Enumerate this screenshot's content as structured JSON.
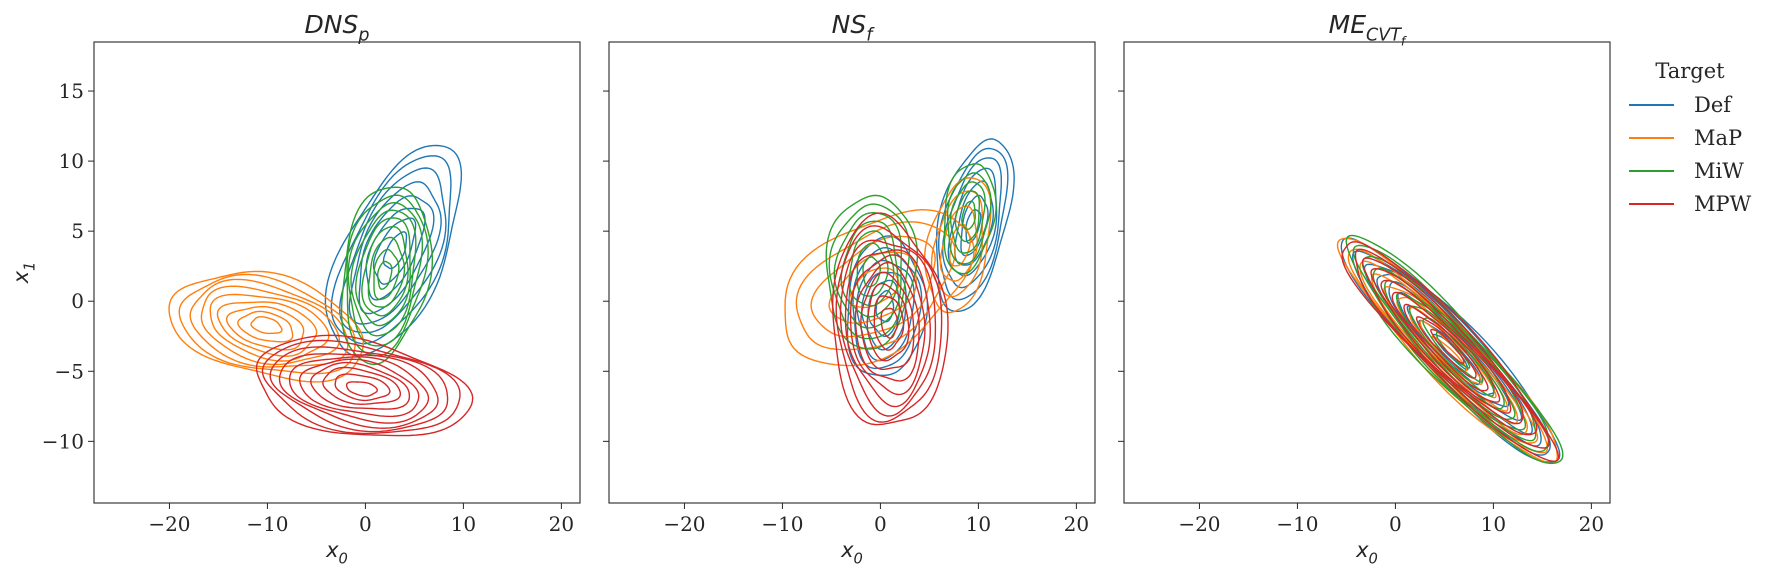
{
  "chart_data": {
    "type": "kde-contour",
    "xlim": [
      -27.7,
      21.9
    ],
    "ylim": [
      -14.4,
      18.5
    ],
    "xticks": [
      -20,
      -10,
      0,
      10,
      20
    ],
    "yticks": [
      -10,
      -5,
      0,
      5,
      10,
      15
    ],
    "xlabel": {
      "main": "x",
      "sub": "0"
    },
    "ylabel": {
      "main": "x",
      "sub": "1"
    },
    "grid": false,
    "legend": {
      "title": "Target",
      "placement": "outside-right",
      "entries": [
        {
          "name": "Def",
          "color": "#1f77b4"
        },
        {
          "name": "MaP",
          "color": "#ff7f0e"
        },
        {
          "name": "MiW",
          "color": "#2ca02c"
        },
        {
          "name": "MPW",
          "color": "#d62728"
        }
      ]
    },
    "panels": [
      {
        "title": {
          "main": "DNS",
          "sub": "p",
          "subsub": ""
        },
        "series": [
          {
            "name": "Def",
            "components": [
              {
                "center": [
                  3,
                  3.5
                ],
                "radii": [
                  9,
                  4.6
                ],
                "angle_deg": 50,
                "levels": 8
              }
            ]
          },
          {
            "name": "MaP",
            "components": [
              {
                "center": [
                  -10,
                  -1.8
                ],
                "radii": [
                  10,
                  3.6
                ],
                "angle_deg": -8,
                "levels": 9
              }
            ]
          },
          {
            "name": "MiW",
            "components": [
              {
                "center": [
                  2,
                  2
                ],
                "radii": [
                  6.5,
                  4.3
                ],
                "angle_deg": 72,
                "levels": 9
              }
            ]
          },
          {
            "name": "MPW",
            "components": [
              {
                "center": [
                  -0.5,
                  -6.2
                ],
                "radii": [
                  11,
                  3.4
                ],
                "angle_deg": -6,
                "levels": 10
              }
            ]
          }
        ]
      },
      {
        "title": {
          "main": "NS",
          "sub": "f",
          "subsub": ""
        },
        "series": [
          {
            "name": "Def",
            "components": [
              {
                "center": [
                  0.5,
                  -0.5
                ],
                "radii": [
                  5,
                  4
                ],
                "angle_deg": 80,
                "levels": 6
              },
              {
                "center": [
                  9.5,
                  5.5
                ],
                "radii": [
                  6.5,
                  3.3
                ],
                "angle_deg": 68,
                "levels": 7
              }
            ]
          },
          {
            "name": "MaP",
            "components": [
              {
                "center": [
                  -0.5,
                  1
                ],
                "radii": [
                  10,
                  4.8
                ],
                "angle_deg": 18,
                "levels": 5
              },
              {
                "center": [
                  8,
                  4
                ],
                "radii": [
                  5,
                  3
                ],
                "angle_deg": 70,
                "levels": 4
              }
            ]
          },
          {
            "name": "MiW",
            "components": [
              {
                "center": [
                  -1,
                  2.2
                ],
                "radii": [
                  5.5,
                  4.5
                ],
                "angle_deg": 80,
                "levels": 7
              },
              {
                "center": [
                  9,
                  6
                ],
                "radii": [
                  4,
                  2.5
                ],
                "angle_deg": 75,
                "levels": 5
              }
            ]
          },
          {
            "name": "MPW",
            "components": [
              {
                "center": [
                  0.8,
                  -1.6
                ],
                "radii": [
                  5.8,
                  7.5
                ],
                "angle_deg": 10,
                "levels": 10
              }
            ]
          }
        ]
      },
      {
        "title": {
          "main": "ME",
          "sub": "CVT",
          "subsub": "f"
        },
        "series": [
          {
            "name": "Def",
            "components": [
              {
                "center": [
                  5.8,
                  -3.6
                ],
                "radii": [
                  13.5,
                  2.4
                ],
                "angle_deg": -35,
                "levels": 9
              }
            ]
          },
          {
            "name": "MaP",
            "components": [
              {
                "center": [
                  5.6,
                  -3.7
                ],
                "radii": [
                  13.6,
                  2.3
                ],
                "angle_deg": -35,
                "levels": 9
              }
            ]
          },
          {
            "name": "MiW",
            "components": [
              {
                "center": [
                  5.7,
                  -3.5
                ],
                "radii": [
                  13.4,
                  2.5
                ],
                "angle_deg": -36,
                "levels": 9
              }
            ]
          },
          {
            "name": "MPW",
            "components": [
              {
                "center": [
                  5.3,
                  -3.3
                ],
                "radii": [
                  13.2,
                  2.3
                ],
                "angle_deg": -35,
                "levels": 9
              }
            ]
          }
        ]
      }
    ]
  }
}
